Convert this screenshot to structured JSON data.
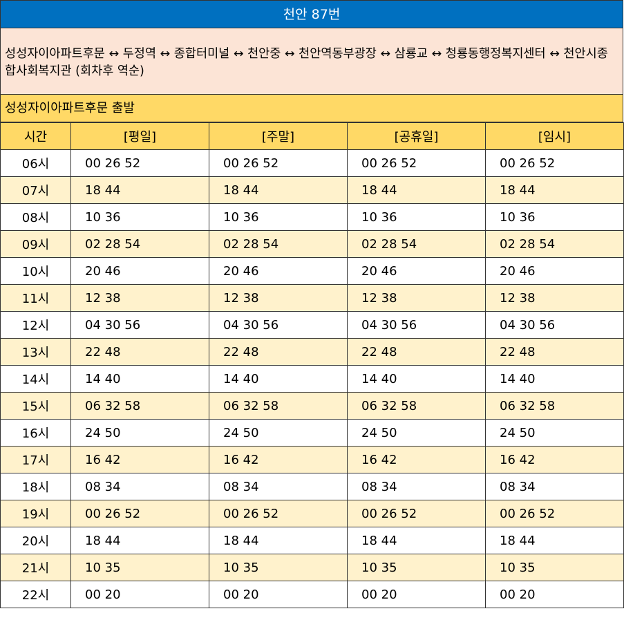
{
  "title": "천안 87번",
  "route": "성성자이아파트후문 ↔ 두정역 ↔ 종합터미널 ↔ 천안중 ↔ 천안역동부광장 ↔ 삼룡교 ↔ 청룡동행정복지센터 ↔ 천안시종합사회복지관 (회차후 역순)",
  "origin": "성성자이아파트후문 출발",
  "headers": [
    "시간",
    "[평일]",
    "[주말]",
    "[공휴일]",
    "[임시]"
  ],
  "rows": [
    {
      "hour": "06시",
      "times": [
        "00 26 52",
        "00 26 52",
        "00 26 52",
        "00 26 52"
      ]
    },
    {
      "hour": "07시",
      "times": [
        "18 44",
        "18 44",
        "18 44",
        "18 44"
      ]
    },
    {
      "hour": "08시",
      "times": [
        "10 36",
        "10 36",
        "10 36",
        "10 36"
      ]
    },
    {
      "hour": "09시",
      "times": [
        "02 28 54",
        "02 28 54",
        "02 28 54",
        "02 28 54"
      ]
    },
    {
      "hour": "10시",
      "times": [
        "20 46",
        "20 46",
        "20 46",
        "20 46"
      ]
    },
    {
      "hour": "11시",
      "times": [
        "12 38",
        "12 38",
        "12 38",
        "12 38"
      ]
    },
    {
      "hour": "12시",
      "times": [
        "04 30 56",
        "04 30 56",
        "04 30 56",
        "04 30 56"
      ]
    },
    {
      "hour": "13시",
      "times": [
        "22 48",
        "22 48",
        "22 48",
        "22 48"
      ]
    },
    {
      "hour": "14시",
      "times": [
        "14 40",
        "14 40",
        "14 40",
        "14 40"
      ]
    },
    {
      "hour": "15시",
      "times": [
        "06 32 58",
        "06 32 58",
        "06 32 58",
        "06 32 58"
      ]
    },
    {
      "hour": "16시",
      "times": [
        "24 50",
        "24 50",
        "24 50",
        "24 50"
      ]
    },
    {
      "hour": "17시",
      "times": [
        "16 42",
        "16 42",
        "16 42",
        "16 42"
      ]
    },
    {
      "hour": "18시",
      "times": [
        "08 34",
        "08 34",
        "08 34",
        "08 34"
      ]
    },
    {
      "hour": "19시",
      "times": [
        "00 26 52",
        "00 26 52",
        "00 26 52",
        "00 26 52"
      ]
    },
    {
      "hour": "20시",
      "times": [
        "18 44",
        "18 44",
        "18 44",
        "18 44"
      ]
    },
    {
      "hour": "21시",
      "times": [
        "10 35",
        "10 35",
        "10 35",
        "10 35"
      ]
    },
    {
      "hour": "22시",
      "times": [
        "00 20",
        "00 20",
        "00 20",
        "00 20"
      ]
    }
  ],
  "colors": {
    "title_bg": "#0070c0",
    "route_bg": "#fce4d6",
    "header_bg": "#ffd966",
    "alt_row_bg": "#fff2cc"
  }
}
